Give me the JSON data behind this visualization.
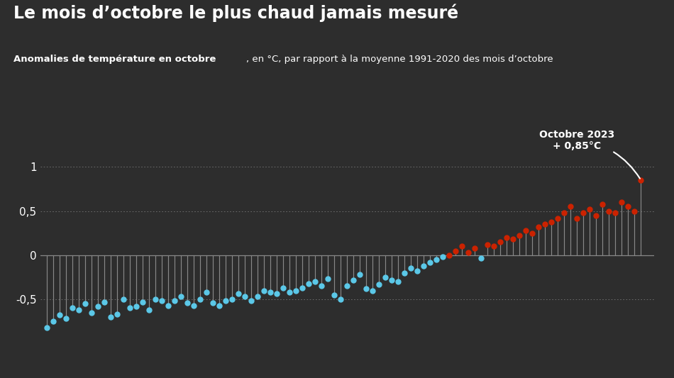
{
  "title": "Le mois d’octobre le plus chaud jamais mesuré",
  "subtitle_bold": "Anomalies de température en octobre",
  "subtitle_rest": ", en °C, par rapport à la moyenne 1991-2020 des mois d’octobre",
  "annotation_line1": "Octobre 2023",
  "annotation_line2": "+ 0,85°C",
  "background_color": "#2d2d2d",
  "text_color": "#ffffff",
  "stem_color": "#888888",
  "dot_color_cold": "#5bc8e8",
  "dot_color_warm": "#cc2200",
  "grid_color": "#888888",
  "ytick_values": [
    -0.5,
    0,
    0.5,
    1
  ],
  "ytick_labels": [
    "-0,5",
    "0",
    "0,5",
    "1"
  ],
  "ylim": [
    -1.05,
    1.35
  ],
  "xlim_left": -1,
  "values": [
    -0.82,
    -0.75,
    -0.68,
    -0.72,
    -0.6,
    -0.62,
    -0.55,
    -0.65,
    -0.58,
    -0.53,
    -0.7,
    -0.67,
    -0.5,
    -0.6,
    -0.58,
    -0.53,
    -0.62,
    -0.5,
    -0.52,
    -0.57,
    -0.52,
    -0.47,
    -0.54,
    -0.57,
    -0.5,
    -0.42,
    -0.54,
    -0.57,
    -0.52,
    -0.5,
    -0.44,
    -0.47,
    -0.52,
    -0.47,
    -0.4,
    -0.42,
    -0.44,
    -0.37,
    -0.42,
    -0.4,
    -0.37,
    -0.32,
    -0.3,
    -0.35,
    -0.27,
    -0.45,
    -0.5,
    -0.35,
    -0.28,
    -0.22,
    -0.38,
    -0.4,
    -0.33,
    -0.25,
    -0.28,
    -0.3,
    -0.2,
    -0.15,
    -0.18,
    -0.12,
    -0.08,
    -0.05,
    -0.02,
    0.0,
    0.05,
    0.1,
    0.03,
    0.08,
    -0.03,
    0.12,
    0.1,
    0.15,
    0.2,
    0.18,
    0.22,
    0.28,
    0.25,
    0.32,
    0.35,
    0.38,
    0.42,
    0.48,
    0.55,
    0.42,
    0.48,
    0.52,
    0.45,
    0.58,
    0.5,
    0.48,
    0.6,
    0.55,
    0.5,
    0.85
  ],
  "threshold": 0.0,
  "dot_size": 5.0,
  "stem_lw": 0.85
}
